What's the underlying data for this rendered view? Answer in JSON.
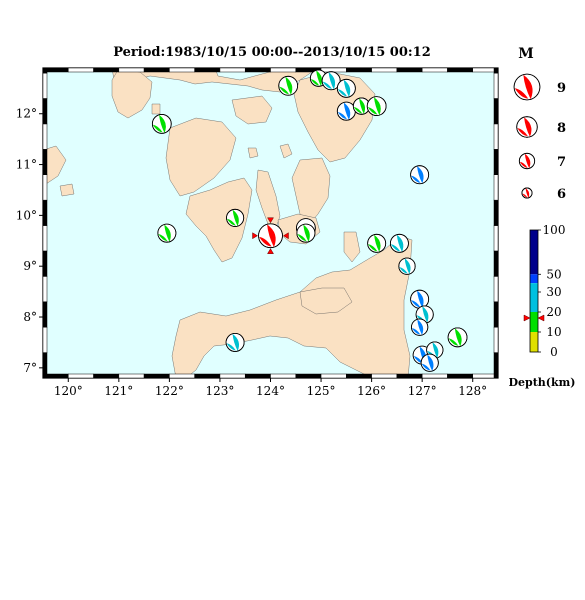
{
  "title": "Period:1983/10/15 00:00--2013/10/15 00:12",
  "map": {
    "ocean_color": "#e0ffff",
    "land_color": "#fae1c3",
    "lon_ticks": [
      "120°",
      "121°",
      "122°",
      "123°",
      "124°",
      "125°",
      "126°",
      "127°",
      "128°"
    ],
    "lon_values": [
      120,
      121,
      122,
      123,
      124,
      125,
      126,
      127,
      128
    ],
    "lat_ticks": [
      "12°",
      "11°",
      "10°",
      "9°",
      "8°",
      "7°"
    ],
    "lat_values": [
      12,
      11,
      10,
      9,
      8,
      7
    ],
    "lon_range": [
      119.5,
      128.5
    ],
    "lat_range": [
      6.8,
      12.9
    ]
  },
  "events": [
    {
      "lon": 121.85,
      "lat": 11.8,
      "mag": 6.3,
      "color": "#00e000"
    },
    {
      "lon": 121.95,
      "lat": 9.65,
      "mag": 6.2,
      "color": "#00e000"
    },
    {
      "lon": 123.3,
      "lat": 7.5,
      "mag": 6.2,
      "color": "#00c0d0"
    },
    {
      "lon": 123.3,
      "lat": 9.95,
      "mag": 6.1,
      "color": "#00e000"
    },
    {
      "lon": 124.0,
      "lat": 9.6,
      "mag": 6.9,
      "color": "#ff0000",
      "star": true
    },
    {
      "lon": 124.35,
      "lat": 12.55,
      "mag": 6.3,
      "color": "#00e000"
    },
    {
      "lon": 124.95,
      "lat": 12.7,
      "mag": 6.0,
      "color": "#00e000"
    },
    {
      "lon": 124.7,
      "lat": 9.75,
      "mag": 6.3,
      "color": "#ffffff"
    },
    {
      "lon": 124.7,
      "lat": 9.65,
      "mag": 6.2,
      "color": "#00e000"
    },
    {
      "lon": 125.2,
      "lat": 12.65,
      "mag": 6.2,
      "color": "#00c0d0"
    },
    {
      "lon": 125.5,
      "lat": 12.5,
      "mag": 6.2,
      "color": "#00c0d0"
    },
    {
      "lon": 125.5,
      "lat": 12.05,
      "mag": 6.2,
      "color": "#0080ff"
    },
    {
      "lon": 125.8,
      "lat": 12.15,
      "mag": 6.0,
      "color": "#00e000"
    },
    {
      "lon": 126.1,
      "lat": 12.15,
      "mag": 6.3,
      "color": "#00e000"
    },
    {
      "lon": 126.1,
      "lat": 9.45,
      "mag": 6.2,
      "color": "#00e000"
    },
    {
      "lon": 126.55,
      "lat": 9.45,
      "mag": 6.2,
      "color": "#00c0d0"
    },
    {
      "lon": 126.7,
      "lat": 9.0,
      "mag": 6.0,
      "color": "#00c0d0"
    },
    {
      "lon": 126.95,
      "lat": 10.8,
      "mag": 6.2,
      "color": "#0080ff"
    },
    {
      "lon": 126.95,
      "lat": 8.35,
      "mag": 6.2,
      "color": "#0080ff"
    },
    {
      "lon": 127.05,
      "lat": 8.05,
      "mag": 6.1,
      "color": "#00c0d0"
    },
    {
      "lon": 126.95,
      "lat": 7.8,
      "mag": 6.0,
      "color": "#0080ff"
    },
    {
      "lon": 127.7,
      "lat": 7.6,
      "mag": 6.3,
      "color": "#00e000"
    },
    {
      "lon": 127.0,
      "lat": 7.25,
      "mag": 6.2,
      "color": "#0080ff"
    },
    {
      "lon": 127.25,
      "lat": 7.35,
      "mag": 6.0,
      "color": "#00c0d0"
    },
    {
      "lon": 127.15,
      "lat": 7.1,
      "mag": 6.1,
      "color": "#0080ff"
    }
  ],
  "legend": {
    "title": "M",
    "items": [
      {
        "label": "9",
        "mag": 9
      },
      {
        "label": "8",
        "mag": 8
      },
      {
        "label": "7",
        "mag": 7
      },
      {
        "label": "6",
        "mag": 6
      }
    ]
  },
  "depth_scale": {
    "label": "Depth(km)",
    "ticks": [
      {
        "label": "100",
        "value": 100
      },
      {
        "label": "50",
        "value": 50
      },
      {
        "label": "30",
        "value": 30
      },
      {
        "label": "20",
        "value": 20
      },
      {
        "label": "10",
        "value": 10
      },
      {
        "label": "0",
        "value": 0
      }
    ],
    "marker_depth": 17,
    "colors": {
      "deep": "#00008b",
      "mid": "#0040ff",
      "shallow": "#00c0e0",
      "green": "#00e000",
      "yellow": "#e0e000"
    }
  }
}
